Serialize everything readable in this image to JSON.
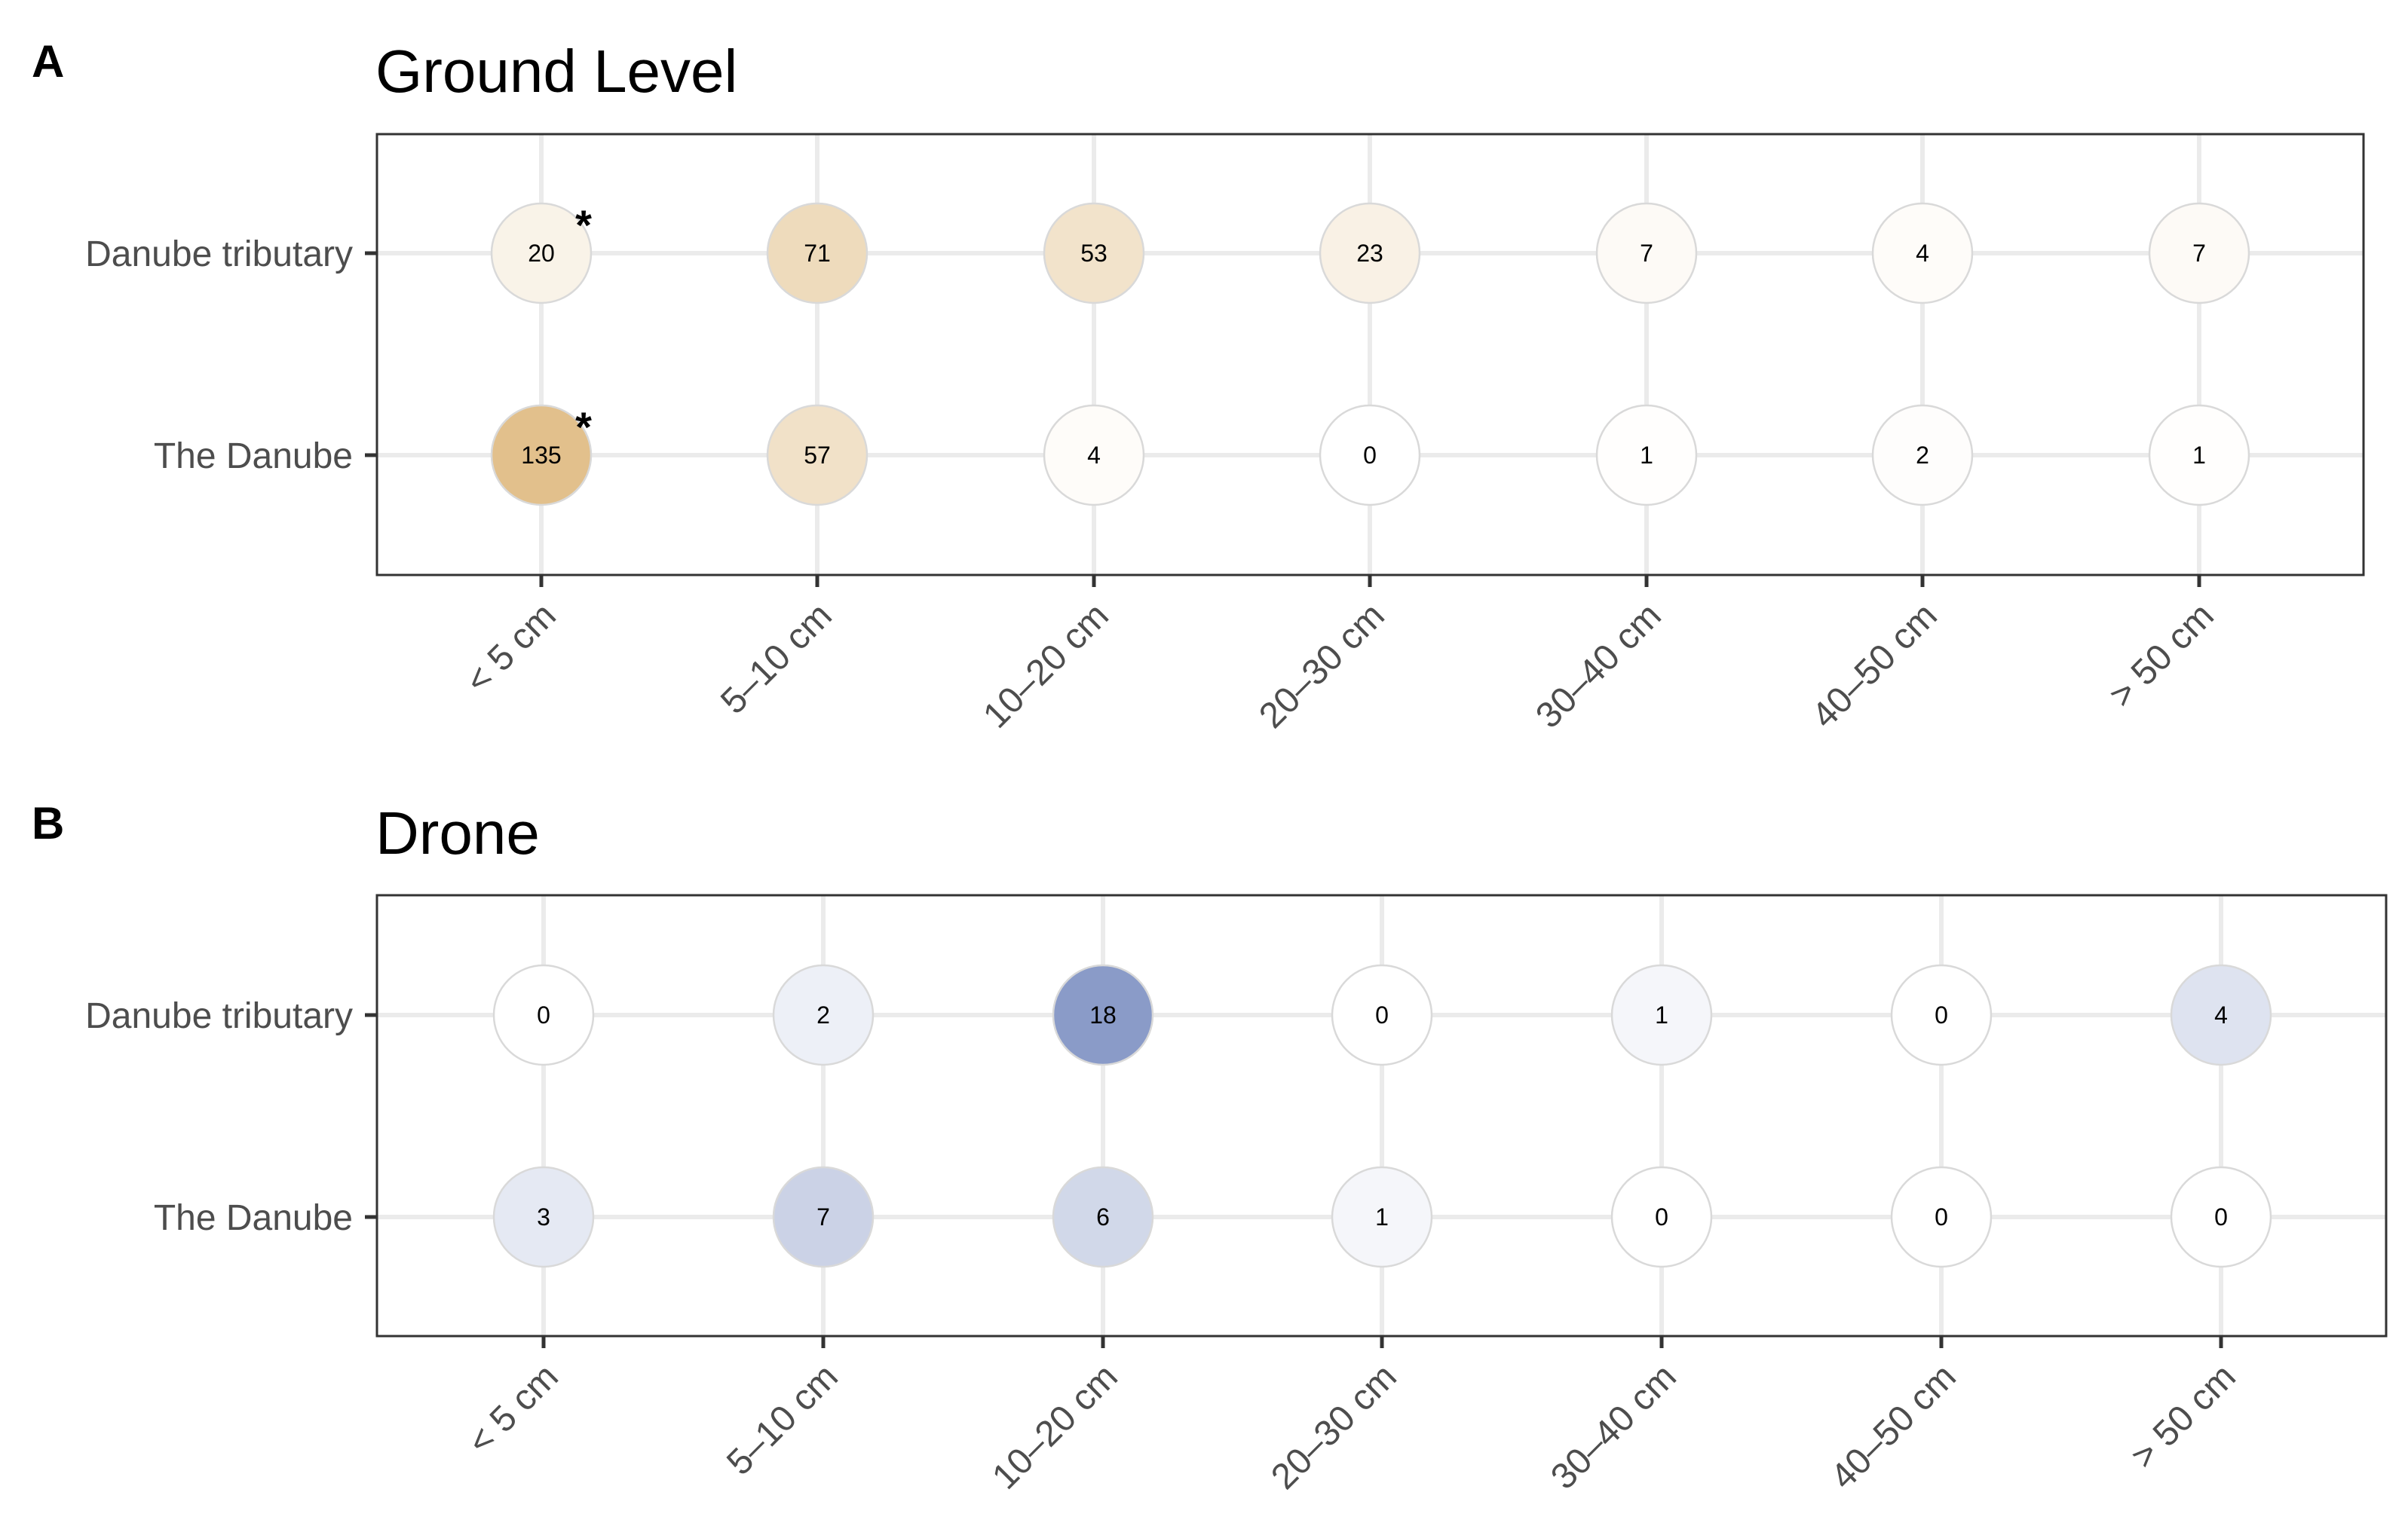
{
  "chart_data": [
    {
      "type": "bubble",
      "panel": "A",
      "title": "Ground Level",
      "categories": [
        "< 5 cm",
        "5–10 cm",
        "10–20 cm",
        "20–30 cm",
        "30–40 cm",
        "40–50 cm",
        "> 50 cm"
      ],
      "rows": [
        "Danube tributary",
        "The Danube"
      ],
      "series": [
        {
          "name": "Danube tributary",
          "values": [
            20,
            71,
            53,
            23,
            7,
            4,
            7
          ]
        },
        {
          "name": "The Danube",
          "values": [
            135,
            57,
            4,
            0,
            1,
            2,
            1
          ]
        }
      ],
      "significance": [
        {
          "name": "Danube tributary",
          "marks": [
            "*",
            "",
            "",
            "",
            "",
            "",
            ""
          ]
        },
        {
          "name": "The Danube",
          "marks": [
            "*",
            "",
            "",
            "",
            "",
            "",
            ""
          ]
        }
      ],
      "max_value": 135,
      "color_low": "#ffffff",
      "color_high": "#e2c08c"
    },
    {
      "type": "bubble",
      "panel": "B",
      "title": "Drone",
      "categories": [
        "< 5 cm",
        "5–10 cm",
        "10–20 cm",
        "20–30 cm",
        "30–40 cm",
        "40–50 cm",
        "> 50 cm"
      ],
      "rows": [
        "Danube tributary",
        "The Danube"
      ],
      "series": [
        {
          "name": "Danube tributary",
          "values": [
            0,
            2,
            18,
            0,
            1,
            0,
            4
          ]
        },
        {
          "name": "The Danube",
          "values": [
            3,
            7,
            6,
            1,
            0,
            0,
            0
          ]
        }
      ],
      "significance": [
        {
          "name": "Danube tributary",
          "marks": [
            "",
            "",
            "",
            "",
            "",
            "",
            ""
          ]
        },
        {
          "name": "The Danube",
          "marks": [
            "",
            "",
            "",
            "",
            "",
            "",
            ""
          ]
        }
      ],
      "max_value": 18,
      "color_low": "#ffffff",
      "color_high": "#8a9bc8"
    }
  ]
}
